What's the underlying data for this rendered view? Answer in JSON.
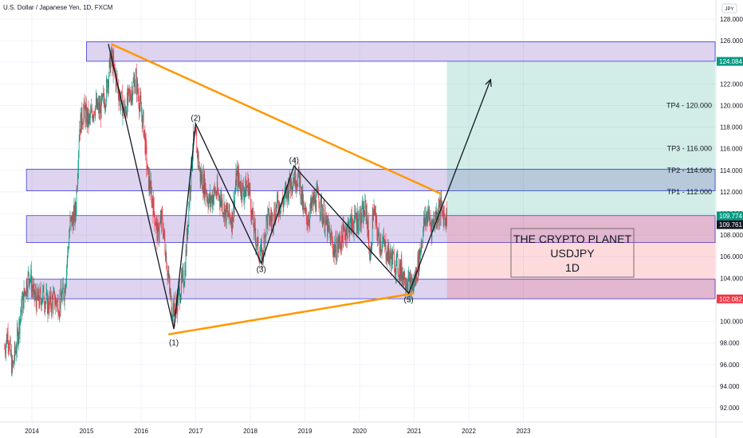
{
  "chart_data": {
    "type": "candlestick",
    "title": "U.S. Dollar / Japanese Yen, 1D, FXCM",
    "currency": "JPY",
    "x_ticks": [
      "2014",
      "2015",
      "2016",
      "2017",
      "2018",
      "2019",
      "2020",
      "2021",
      "2022",
      "2023"
    ],
    "y_ticks": [
      "92.000",
      "94.000",
      "96.000",
      "98.000",
      "100.000",
      "102.000",
      "104.000",
      "106.000",
      "108.000",
      "110.000",
      "112.000",
      "114.000",
      "116.000",
      "118.000",
      "120.000",
      "122.000",
      "124.000",
      "126.000",
      "128.000"
    ],
    "ylim": [
      91,
      129
    ],
    "price_tags": [
      {
        "label": "124.084",
        "value": 124.084,
        "color": "#089981"
      },
      {
        "label": "109.774",
        "value": 109.774,
        "color": "#089981"
      },
      {
        "label": "109.761",
        "value": 109.761,
        "color": "#131722"
      },
      {
        "label": "102.082",
        "value": 102.082,
        "color": "#f23645"
      }
    ],
    "zones": [
      {
        "from": 124.1,
        "to": 125.9,
        "x_start": 2015.0
      },
      {
        "from": 112.1,
        "to": 114.1,
        "x_start": 2013.9
      },
      {
        "from": 107.3,
        "to": 109.8,
        "x_start": 2013.9
      },
      {
        "from": 102.1,
        "to": 103.9,
        "x_start": 2013.9
      }
    ],
    "target_box": {
      "x_from": 2021.6,
      "top": 124.084,
      "entry": 109.774,
      "bottom": 102.082
    },
    "take_profits": [
      {
        "label": "TP1 - 112.000",
        "value": 112.0
      },
      {
        "label": "TP2 - 114.000",
        "value": 114.0
      },
      {
        "label": "TP3 - 116.000",
        "value": 116.0
      },
      {
        "label": "TP4 - 120.000",
        "value": 120.0
      }
    ],
    "triangle_upper": [
      [
        2015.45,
        125.7
      ],
      [
        2021.5,
        111.8
      ]
    ],
    "triangle_lower": [
      [
        2016.5,
        98.8
      ],
      [
        2021.0,
        102.6
      ]
    ],
    "wave_path": [
      [
        2015.4,
        125.7
      ],
      [
        2016.6,
        99.3
      ],
      [
        2017.0,
        118.3
      ],
      [
        2018.2,
        105.4
      ],
      [
        2018.8,
        114.4
      ],
      [
        2020.9,
        102.6
      ],
      [
        2022.4,
        122.4
      ]
    ],
    "wave_labels": [
      {
        "label": "(1)",
        "x": 2016.6,
        "y": 98.6,
        "pos": "below"
      },
      {
        "label": "(2)",
        "x": 2017.0,
        "y": 118.3,
        "pos": "above"
      },
      {
        "label": "(3)",
        "x": 2018.2,
        "y": 105.4,
        "pos": "below"
      },
      {
        "label": "(4)",
        "x": 2018.8,
        "y": 114.4,
        "pos": "above"
      },
      {
        "label": "(5)",
        "x": 2020.9,
        "y": 102.6,
        "pos": "below"
      }
    ],
    "close_series": [
      [
        2013.5,
        97.5
      ],
      [
        2013.56,
        99.0
      ],
      [
        2013.64,
        95.5
      ],
      [
        2013.72,
        98.0
      ],
      [
        2013.8,
        101.0
      ],
      [
        2013.88,
        103.0
      ],
      [
        2013.96,
        104.5
      ],
      [
        2014.03,
        102.5
      ],
      [
        2014.1,
        101.8
      ],
      [
        2014.2,
        102.5
      ],
      [
        2014.3,
        101.5
      ],
      [
        2014.4,
        102.0
      ],
      [
        2014.5,
        101.6
      ],
      [
        2014.6,
        103.0
      ],
      [
        2014.7,
        109.0
      ],
      [
        2014.8,
        110.0
      ],
      [
        2014.87,
        118.0
      ],
      [
        2014.95,
        119.5
      ],
      [
        2015.05,
        118.5
      ],
      [
        2015.15,
        120.0
      ],
      [
        2015.25,
        119.5
      ],
      [
        2015.35,
        121.0
      ],
      [
        2015.45,
        124.5
      ],
      [
        2015.52,
        123.0
      ],
      [
        2015.62,
        120.5
      ],
      [
        2015.7,
        119.5
      ],
      [
        2015.8,
        121.0
      ],
      [
        2015.9,
        122.5
      ],
      [
        2015.97,
        120.3
      ],
      [
        2016.05,
        118.0
      ],
      [
        2016.12,
        113.5
      ],
      [
        2016.2,
        111.5
      ],
      [
        2016.3,
        108.0
      ],
      [
        2016.38,
        109.5
      ],
      [
        2016.45,
        106.5
      ],
      [
        2016.55,
        101.5
      ],
      [
        2016.62,
        101.0
      ],
      [
        2016.72,
        103.0
      ],
      [
        2016.8,
        104.5
      ],
      [
        2016.87,
        110.5
      ],
      [
        2016.95,
        116.5
      ],
      [
        2017.0,
        117.0
      ],
      [
        2017.08,
        113.5
      ],
      [
        2017.17,
        112.5
      ],
      [
        2017.25,
        111.0
      ],
      [
        2017.35,
        112.0
      ],
      [
        2017.45,
        111.5
      ],
      [
        2017.55,
        110.0
      ],
      [
        2017.67,
        109.5
      ],
      [
        2017.75,
        113.5
      ],
      [
        2017.87,
        112.0
      ],
      [
        2017.97,
        112.7
      ],
      [
        2018.05,
        109.0
      ],
      [
        2018.15,
        106.5
      ],
      [
        2018.22,
        106.0
      ],
      [
        2018.3,
        109.5
      ],
      [
        2018.4,
        109.5
      ],
      [
        2018.5,
        110.8
      ],
      [
        2018.6,
        111.0
      ],
      [
        2018.7,
        112.5
      ],
      [
        2018.8,
        113.5
      ],
      [
        2018.9,
        113.2
      ],
      [
        2018.98,
        110.0
      ],
      [
        2019.05,
        109.5
      ],
      [
        2019.15,
        111.0
      ],
      [
        2019.25,
        111.5
      ],
      [
        2019.35,
        109.5
      ],
      [
        2019.45,
        108.0
      ],
      [
        2019.55,
        106.5
      ],
      [
        2019.65,
        107.5
      ],
      [
        2019.75,
        108.5
      ],
      [
        2019.85,
        109.0
      ],
      [
        2019.95,
        109.5
      ],
      [
        2020.03,
        109.5
      ],
      [
        2020.12,
        110.5
      ],
      [
        2020.2,
        105.5
      ],
      [
        2020.25,
        110.5
      ],
      [
        2020.35,
        107.5
      ],
      [
        2020.45,
        107.0
      ],
      [
        2020.55,
        106.0
      ],
      [
        2020.65,
        105.5
      ],
      [
        2020.75,
        104.8
      ],
      [
        2020.85,
        104.0
      ],
      [
        2020.93,
        103.2
      ],
      [
        2021.0,
        103.5
      ],
      [
        2021.08,
        105.5
      ],
      [
        2021.18,
        109.0
      ],
      [
        2021.25,
        110.0
      ],
      [
        2021.32,
        108.8
      ],
      [
        2021.4,
        109.8
      ],
      [
        2021.48,
        110.5
      ],
      [
        2021.55,
        109.8
      ],
      [
        2021.6,
        109.76
      ]
    ]
  },
  "info_box": {
    "line1": "THE CRYPTO PLANET",
    "line2": "USDJPY",
    "line3": "1D"
  }
}
